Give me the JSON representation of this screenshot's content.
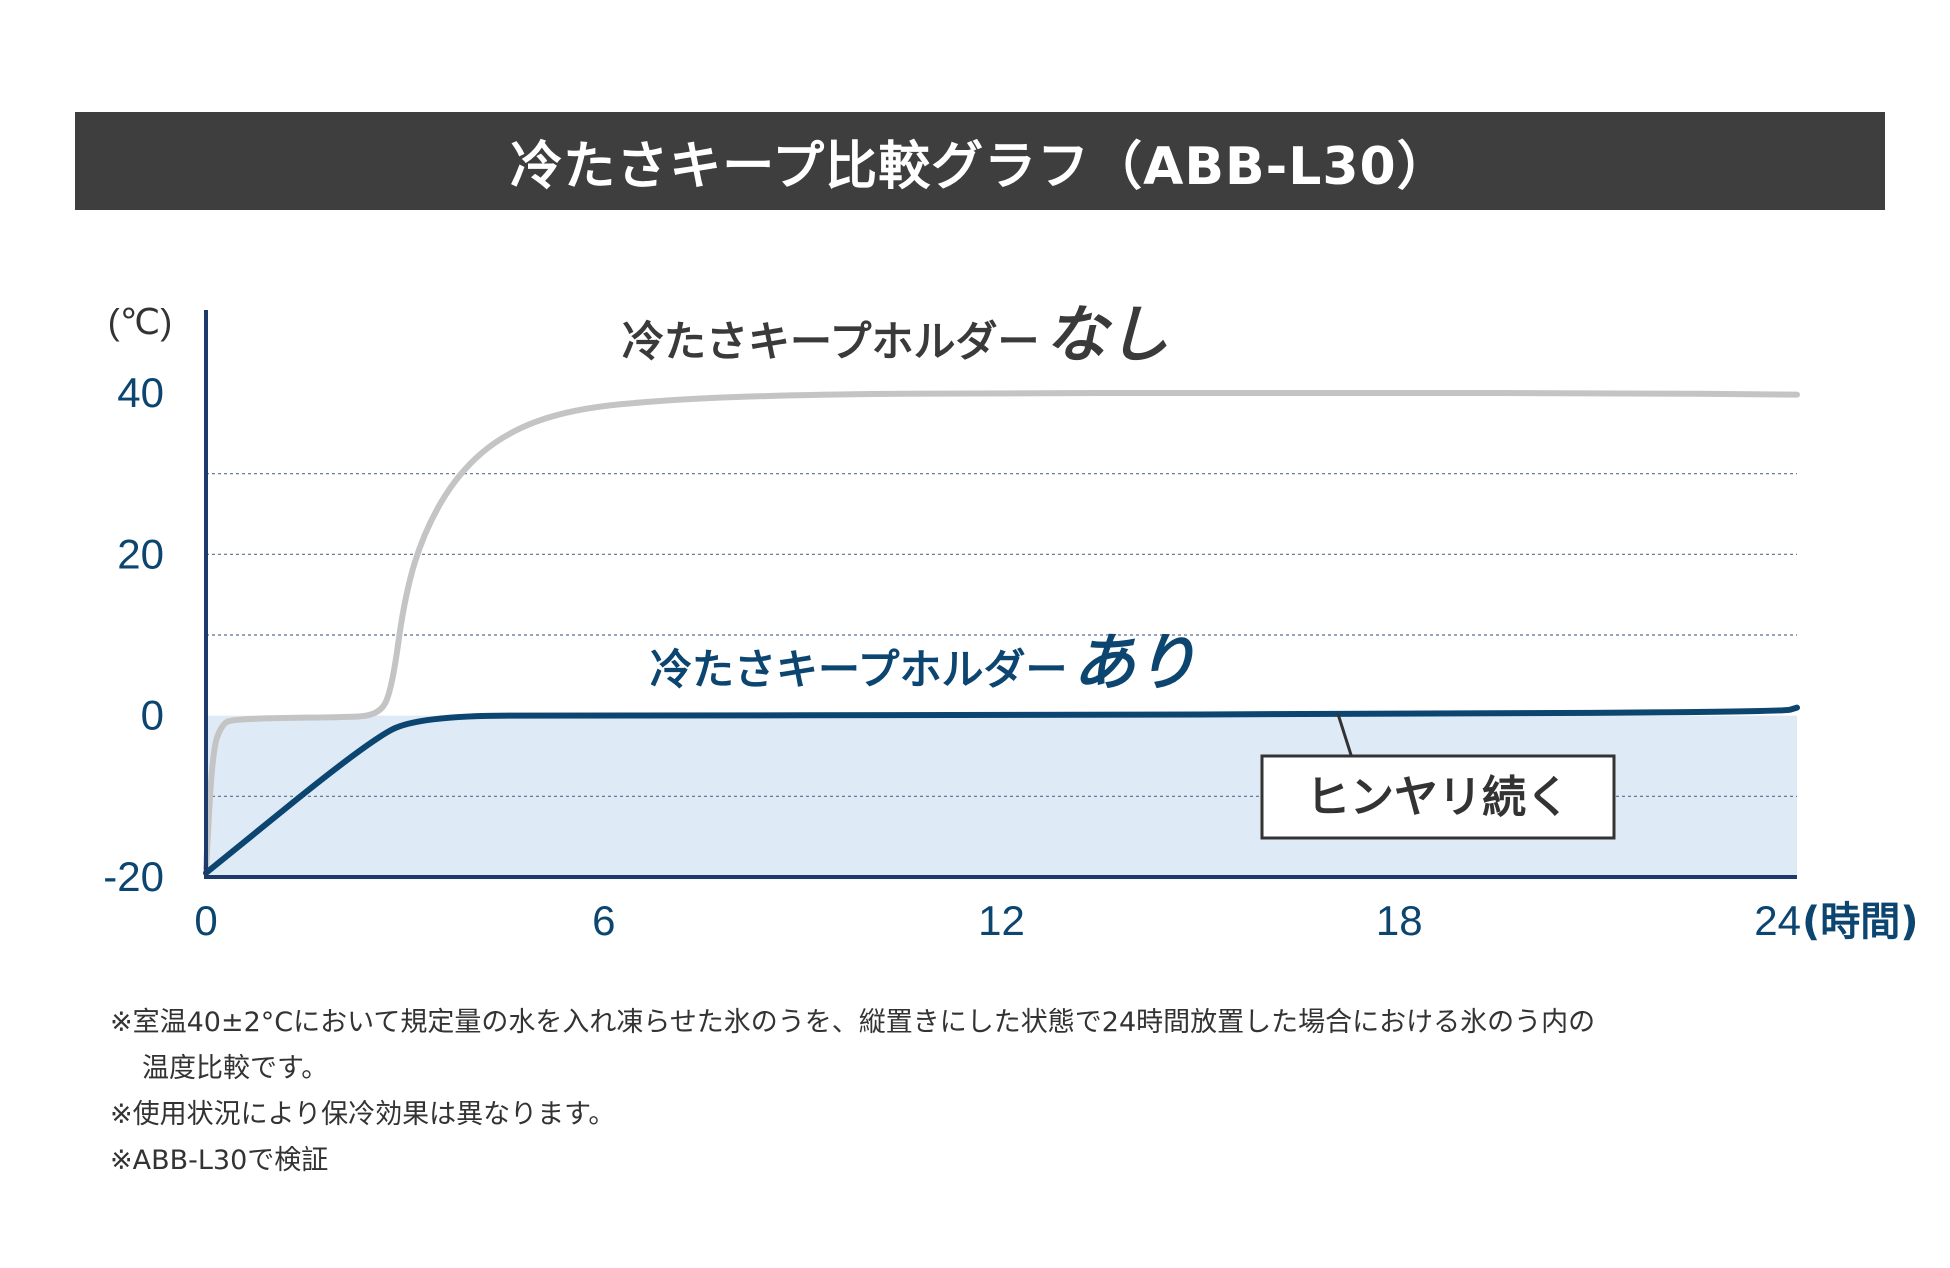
{
  "title": "冷たさキープ比較グラフ（ABB-L30）",
  "colors": {
    "title_bg": "#3e3e3e",
    "without": "#c4c4c4",
    "with": "#0b4570",
    "fill": "#deebf7",
    "axis": "#1c3b6a",
    "tick": "#0b4570"
  },
  "chart_data": {
    "type": "line",
    "y_unit": "(℃)",
    "x_unit": "(時間)",
    "xlim": [
      0,
      24
    ],
    "ylim": [
      -20,
      40
    ],
    "x_ticks": [
      0,
      6,
      12,
      18,
      24
    ],
    "y_ticks": [
      40,
      20,
      0,
      -20
    ],
    "gridlines_y": [
      30,
      20,
      10,
      -10
    ],
    "series": [
      {
        "name": "冷たさキープホルダーなし",
        "name_main": "冷たさキープホルダー",
        "name_emph": "なし",
        "x": [
          0,
          0.1,
          0.25,
          0.4,
          1,
          2,
          2.6,
          2.8,
          3,
          3.3,
          3.8,
          4.5,
          5.5,
          7,
          9,
          12,
          15,
          18,
          21,
          24
        ],
        "y": [
          -19,
          -4,
          -1,
          -0.5,
          -0.3,
          -0.2,
          0,
          3,
          15,
          23,
          30,
          35,
          38,
          39.2,
          39.8,
          40,
          40,
          40,
          40,
          39.8
        ]
      },
      {
        "name": "冷たさキープホルダーあり",
        "name_main": "冷たさキープホルダー",
        "name_emph": "あり",
        "x": [
          0,
          2.4,
          3.2,
          6,
          12,
          18,
          23.8,
          24
        ],
        "y": [
          -19.5,
          -3.5,
          0,
          0,
          0.1,
          0.2,
          0.5,
          1
        ]
      }
    ],
    "annotation": "ヒンヤリ続く"
  },
  "notes": [
    "※室温40±2°Cにおいて規定量の水を入れ凍らせた氷のうを、縦置きにした状態で24時間放置した場合における氷のう内の",
    "温度比較です。",
    "※使用状況により保冷効果は異なります。",
    "※ABB-L30で検証"
  ]
}
